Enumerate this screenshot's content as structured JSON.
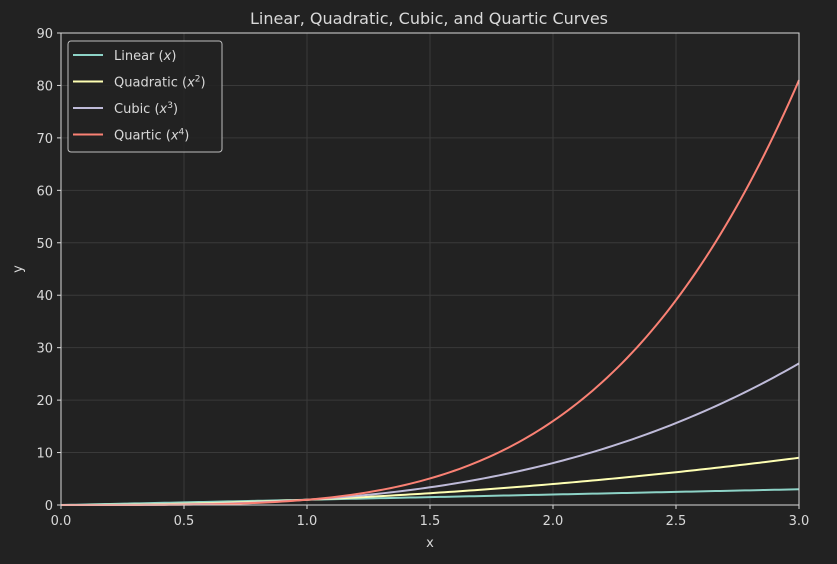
{
  "figure": {
    "background": "#222222",
    "text_color": "#d9d9d9",
    "grid_color": "#3a3a3a"
  },
  "chart_data": {
    "type": "line",
    "title": "Linear, Quadratic, Cubic, and Quartic Curves",
    "xlabel": "x",
    "ylabel": "y",
    "xlim": [
      0.0,
      3.0
    ],
    "ylim": [
      0,
      90
    ],
    "xticks": [
      "0.0",
      "0.5",
      "1.0",
      "1.5",
      "2.0",
      "2.5",
      "3.0"
    ],
    "yticks": [
      "0",
      "10",
      "20",
      "30",
      "40",
      "50",
      "60",
      "70",
      "80",
      "90"
    ],
    "grid": true,
    "legend_position": "upper left",
    "x": [
      0.0,
      0.25,
      0.5,
      0.75,
      1.0,
      1.25,
      1.5,
      1.75,
      2.0,
      2.25,
      2.5,
      2.75,
      3.0
    ],
    "series": [
      {
        "name": "Linear (x)",
        "label_base": "Linear (",
        "label_var": "x",
        "label_exp": "",
        "label_end": ")",
        "color": "#8dd3c7",
        "power": 1,
        "values": [
          0,
          0.25,
          0.5,
          0.75,
          1,
          1.25,
          1.5,
          1.75,
          2,
          2.25,
          2.5,
          2.75,
          3
        ]
      },
      {
        "name": "Quadratic (x^2)",
        "label_base": "Quadratic (",
        "label_var": "x",
        "label_exp": "2",
        "label_end": ")",
        "color": "#feffb3",
        "power": 2,
        "values": [
          0,
          0.0625,
          0.25,
          0.5625,
          1,
          1.5625,
          2.25,
          3.0625,
          4,
          5.0625,
          6.25,
          7.5625,
          9
        ]
      },
      {
        "name": "Cubic (x^3)",
        "label_base": "Cubic (",
        "label_var": "x",
        "label_exp": "3",
        "label_end": ")",
        "color": "#bfbbd9",
        "power": 3,
        "values": [
          0,
          0.0156,
          0.125,
          0.4219,
          1,
          1.9531,
          3.375,
          5.3594,
          8,
          11.3906,
          15.625,
          20.7969,
          27
        ]
      },
      {
        "name": "Quartic (x^4)",
        "label_base": "Quartic (",
        "label_var": "x",
        "label_exp": "4",
        "label_end": ")",
        "color": "#fa8174",
        "power": 4,
        "values": [
          0,
          0.0039,
          0.0625,
          0.3164,
          1,
          2.4414,
          5.0625,
          9.3789,
          16,
          25.6289,
          39.0625,
          57.1914,
          81
        ]
      }
    ]
  }
}
